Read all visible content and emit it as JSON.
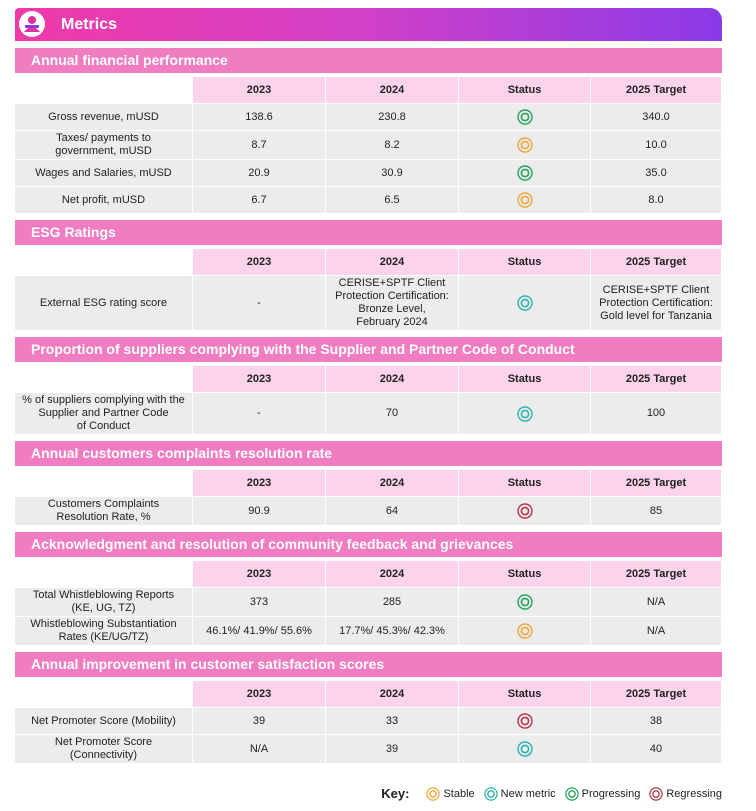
{
  "header": {
    "title": "Metrics"
  },
  "sections": [
    {
      "title": "Annual financial performance",
      "columns": [
        "2023",
        "2024",
        "Status",
        "2025 Target"
      ],
      "rows": [
        {
          "label": "Gross revenue, mUSD",
          "cells": [
            "138.6",
            "230.8",
            "340.0"
          ],
          "status": 2
        },
        {
          "label": "Taxes/ payments to\ngovernment, mUSD",
          "cells": [
            "8.7",
            "8.2",
            "10.0"
          ],
          "status": 0
        },
        {
          "label": "Wages and Salaries, mUSD",
          "cells": [
            "20.9",
            "30.9",
            "35.0"
          ],
          "status": 2
        },
        {
          "label": "Net profit, mUSD",
          "cells": [
            "6.7",
            "6.5",
            "8.0"
          ],
          "status": 0
        }
      ]
    },
    {
      "title": "ESG Ratings",
      "columns": [
        "2023",
        "2024",
        "Status",
        "2025 Target"
      ],
      "rows": [
        {
          "label": "External ESG rating score",
          "cells": [
            "-",
            "CERISE+SPTF Client\nProtection Certification:\nBronze Level,\nFebruary 2024",
            "CERISE+SPTF Client\nProtection Certification:\nGold level for Tanzania"
          ],
          "status": 1
        }
      ]
    },
    {
      "title": "Proportion of suppliers complying with the Supplier and Partner Code of Conduct",
      "columns": [
        "2023",
        "2024",
        "Status",
        "2025 Target"
      ],
      "rows": [
        {
          "label": "% of suppliers complying with the\nSupplier and Partner Code\nof Conduct",
          "cells": [
            "-",
            "70",
            "100"
          ],
          "status": 1
        }
      ]
    },
    {
      "title": "Annual customers complaints resolution rate",
      "columns": [
        "2023",
        "2024",
        "Status",
        "2025 Target"
      ],
      "rows": [
        {
          "label": "Customers Complaints\nResolution Rate, %",
          "cells": [
            "90.9",
            "64",
            "85"
          ],
          "status": 3
        }
      ]
    },
    {
      "title": "Acknowledgment and resolution of community feedback and grievances",
      "columns": [
        "2023",
        "2024",
        "Status",
        "2025 Target"
      ],
      "rows": [
        {
          "label": "Total Whistleblowing Reports\n(KE, UG, TZ)",
          "cells": [
            "373",
            "285",
            "N/A"
          ],
          "status": 2
        },
        {
          "label": "Whistleblowing Substantiation\nRates (KE/UG/TZ)",
          "cells": [
            "46.1%/ 41.9%/ 55.6%",
            "17.7%/ 45.3%/ 42.3%",
            "N/A"
          ],
          "status": 0
        }
      ]
    },
    {
      "title": "Annual improvement in customer satisfaction scores",
      "columns": [
        "2023",
        "2024",
        "Status",
        "2025 Target"
      ],
      "rows": [
        {
          "label": "Net Promoter Score (Mobility)",
          "cells": [
            "39",
            "33",
            "38"
          ],
          "status": 3
        },
        {
          "label": "Net Promoter Score\n(Connectivity)",
          "cells": [
            "N/A",
            "39",
            "40"
          ],
          "status": 1
        }
      ]
    }
  ],
  "key": {
    "title": "Key:",
    "items": [
      {
        "label": "Stable",
        "color": "#f2a63a"
      },
      {
        "label": "New metric",
        "color": "#2bb3ae"
      },
      {
        "label": "Progressing",
        "color": "#25a35a"
      },
      {
        "label": "Regressing",
        "color": "#b8364a"
      }
    ]
  }
}
